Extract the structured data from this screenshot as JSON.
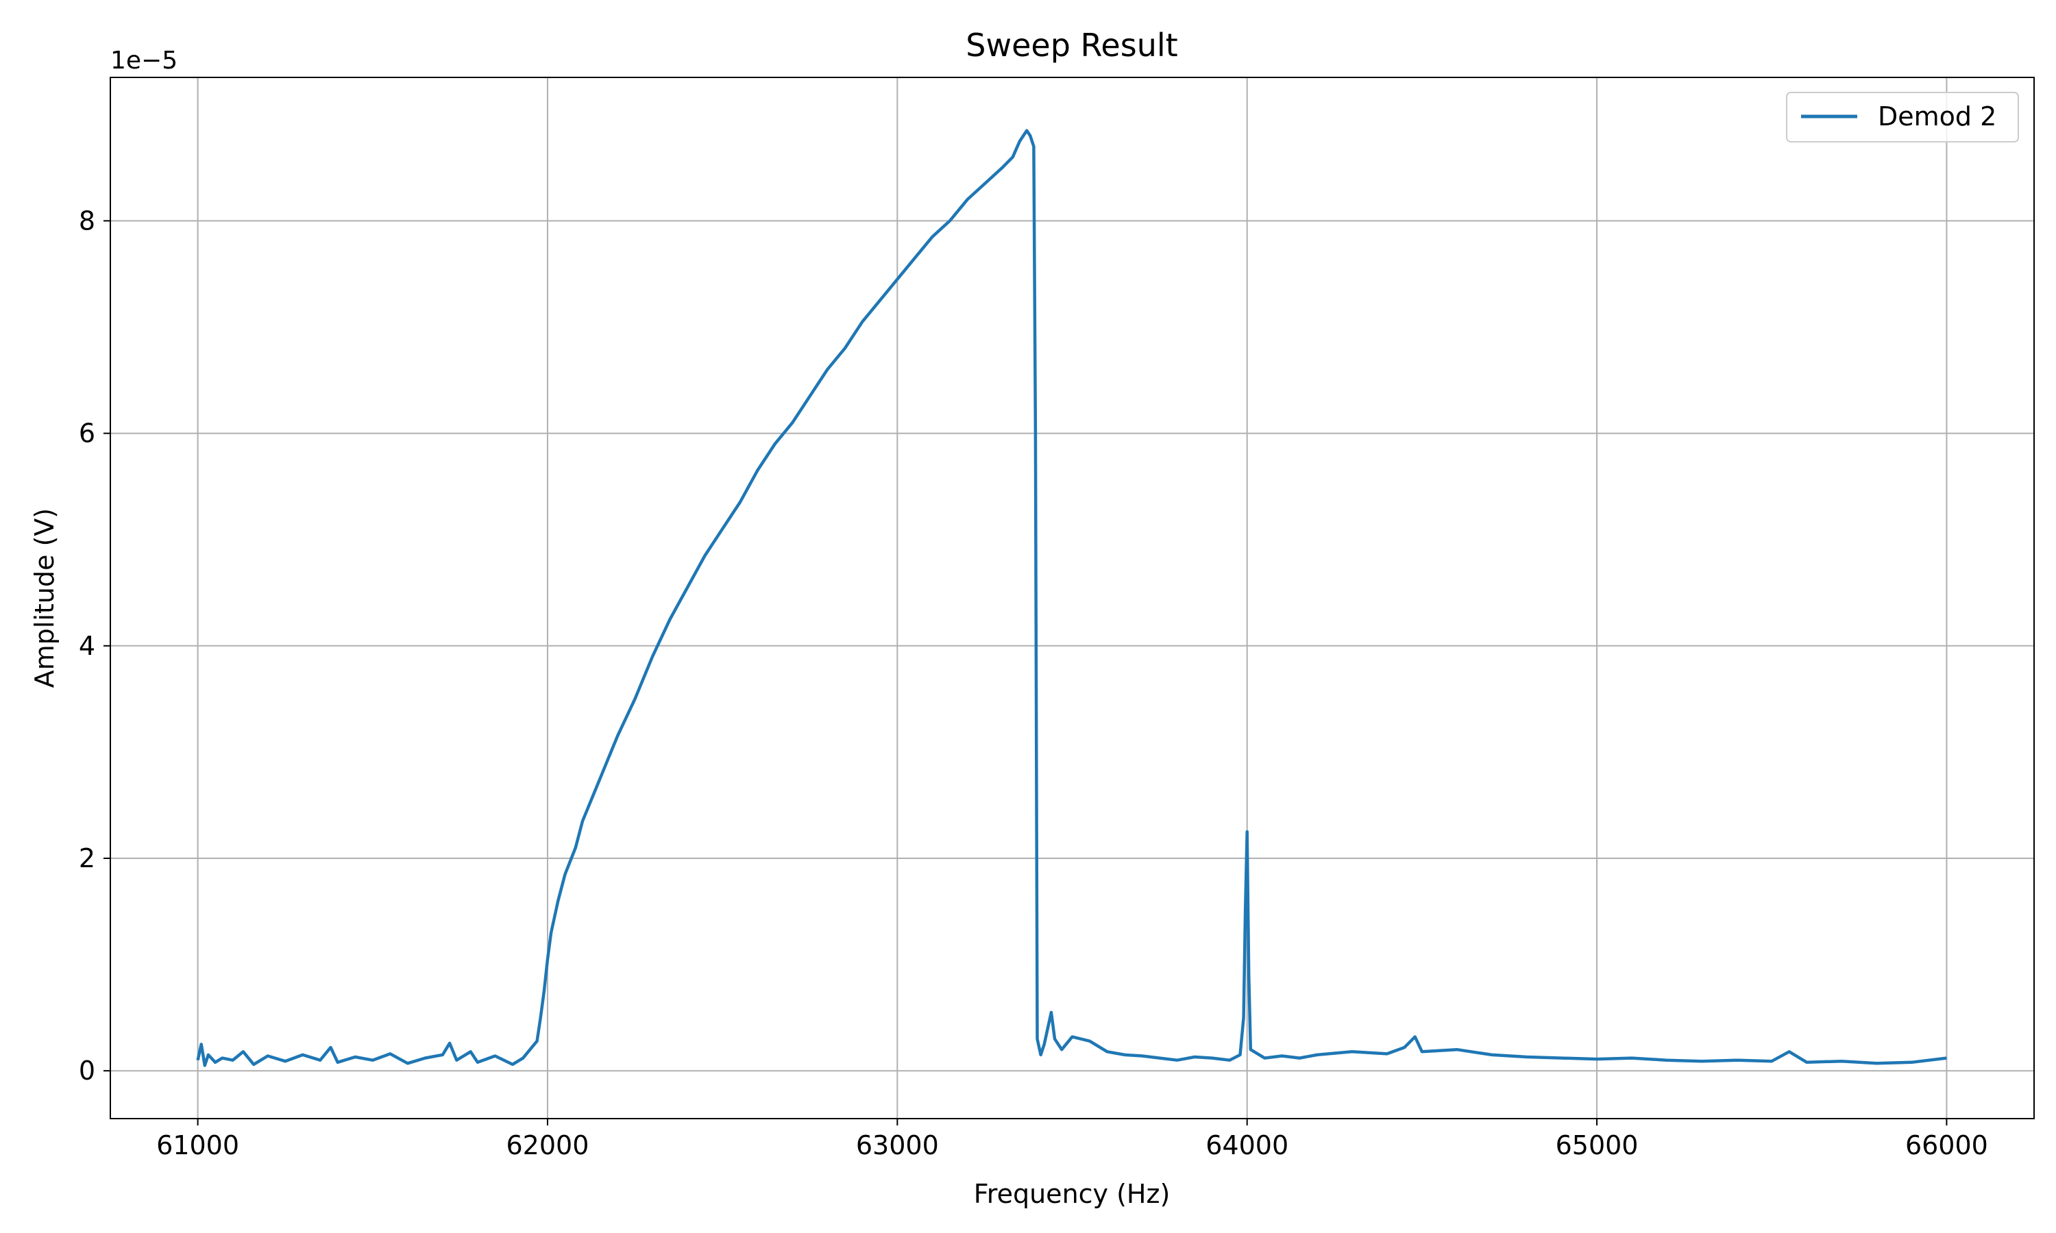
{
  "chart_data": {
    "type": "line",
    "title": "Sweep Result",
    "xlabel": "Frequency (Hz)",
    "ylabel": "Amplitude (V)",
    "offset_text": "1e−5",
    "xlim": [
      60750,
      66250
    ],
    "ylim": [
      -0.45,
      9.35
    ],
    "y_scale_exponent": -5,
    "grid": true,
    "legend_position": "top-right",
    "x_ticks": [
      61000,
      62000,
      63000,
      64000,
      65000,
      66000
    ],
    "x_tick_labels": [
      "61000",
      "62000",
      "63000",
      "64000",
      "65000",
      "66000"
    ],
    "y_ticks": [
      0,
      2,
      4,
      6,
      8
    ],
    "y_tick_labels": [
      "0",
      "2",
      "4",
      "6",
      "8"
    ],
    "series": [
      {
        "name": "Demod 2",
        "color": "#1f77b4",
        "x": [
          61000,
          61010,
          61020,
          61030,
          61050,
          61070,
          61100,
          61130,
          61160,
          61200,
          61250,
          61300,
          61350,
          61380,
          61400,
          61450,
          61500,
          61550,
          61600,
          61650,
          61700,
          61720,
          61740,
          61780,
          61800,
          61850,
          61900,
          61930,
          61950,
          61970,
          61980,
          61990,
          62000,
          62010,
          62020,
          62030,
          62050,
          62080,
          62100,
          62150,
          62200,
          62250,
          62300,
          62350,
          62400,
          62450,
          62500,
          62550,
          62600,
          62650,
          62700,
          62750,
          62800,
          62850,
          62900,
          62950,
          63000,
          63050,
          63100,
          63150,
          63200,
          63250,
          63300,
          63330,
          63350,
          63370,
          63380,
          63390,
          63395,
          63400,
          63410,
          63420,
          63440,
          63450,
          63470,
          63500,
          63550,
          63600,
          63650,
          63700,
          63750,
          63800,
          63850,
          63900,
          63950,
          63980,
          63990,
          63995,
          64000,
          64005,
          64010,
          64050,
          64100,
          64150,
          64200,
          64300,
          64400,
          64450,
          64480,
          64500,
          64600,
          64700,
          64800,
          64900,
          65000,
          65100,
          65200,
          65300,
          65400,
          65500,
          65550,
          65600,
          65700,
          65800,
          65900,
          66000
        ],
        "values": [
          0.1,
          0.25,
          0.05,
          0.15,
          0.08,
          0.12,
          0.1,
          0.18,
          0.06,
          0.14,
          0.09,
          0.15,
          0.1,
          0.22,
          0.08,
          0.13,
          0.1,
          0.16,
          0.07,
          0.12,
          0.15,
          0.26,
          0.1,
          0.18,
          0.08,
          0.14,
          0.06,
          0.12,
          0.2,
          0.28,
          0.5,
          0.75,
          1.05,
          1.3,
          1.45,
          1.6,
          1.85,
          2.1,
          2.35,
          2.75,
          3.15,
          3.5,
          3.9,
          4.25,
          4.55,
          4.85,
          5.1,
          5.35,
          5.65,
          5.9,
          6.1,
          6.35,
          6.6,
          6.8,
          7.05,
          7.25,
          7.45,
          7.65,
          7.85,
          8.0,
          8.2,
          8.35,
          8.5,
          8.6,
          8.75,
          8.85,
          8.8,
          8.7,
          6.0,
          0.3,
          0.15,
          0.25,
          0.55,
          0.3,
          0.2,
          0.32,
          0.28,
          0.18,
          0.15,
          0.14,
          0.12,
          0.1,
          0.13,
          0.12,
          0.1,
          0.15,
          0.5,
          1.5,
          2.25,
          0.9,
          0.2,
          0.12,
          0.14,
          0.12,
          0.15,
          0.18,
          0.16,
          0.22,
          0.32,
          0.18,
          0.2,
          0.15,
          0.13,
          0.12,
          0.11,
          0.12,
          0.1,
          0.09,
          0.1,
          0.09,
          0.18,
          0.08,
          0.09,
          0.07,
          0.08,
          0.12
        ]
      }
    ]
  }
}
